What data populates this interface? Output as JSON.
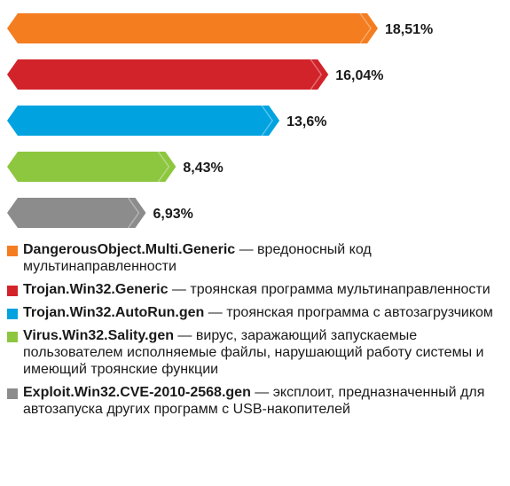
{
  "chart_data": {
    "type": "bar",
    "orientation": "horizontal",
    "categories": [
      "DangerousObject.Multi.Generic",
      "Trojan.Win32.Generic",
      "Trojan.Win32.AutoRun.gen",
      "Virus.Win32.Sality.gen",
      "Exploit.Win32.CVE-2010-2568.gen"
    ],
    "values": [
      18.51,
      16.04,
      13.6,
      8.43,
      6.93
    ],
    "value_labels": [
      "18,51%",
      "16,04%",
      "13,6%",
      "8,43%",
      "6,93%"
    ],
    "colors": [
      "#f47d20",
      "#d2232a",
      "#00a3e0",
      "#8dc63f",
      "#8c8c8c"
    ],
    "title": "",
    "xlabel": "",
    "ylabel": "",
    "grid": false,
    "legend_position": "bottom"
  },
  "legend": [
    {
      "name": "DangerousObject.Multi.Generic",
      "desc": " — вредоносный код мультинаправленности",
      "color": "#f47d20"
    },
    {
      "name": "Trojan.Win32.Generic",
      "desc": " — троянская программа мультинаправленности",
      "color": "#d2232a"
    },
    {
      "name": "Trojan.Win32.AutoRun.gen",
      "desc": " — троянская программа с автозагрузчиком",
      "color": "#00a3e0"
    },
    {
      "name": "Virus.Win32.Sality.gen",
      "desc": " — вирус, заражающий запускаемые пользователем исполняемые файлы, нарушающий работу системы и имеющий троянские функции",
      "color": "#8dc63f"
    },
    {
      "name": "Exploit.Win32.CVE-2010-2568.gen",
      "desc": " — эксплоит, предназначенный для автозапуска других программ с USB-накопителей",
      "color": "#8c8c8c"
    }
  ]
}
